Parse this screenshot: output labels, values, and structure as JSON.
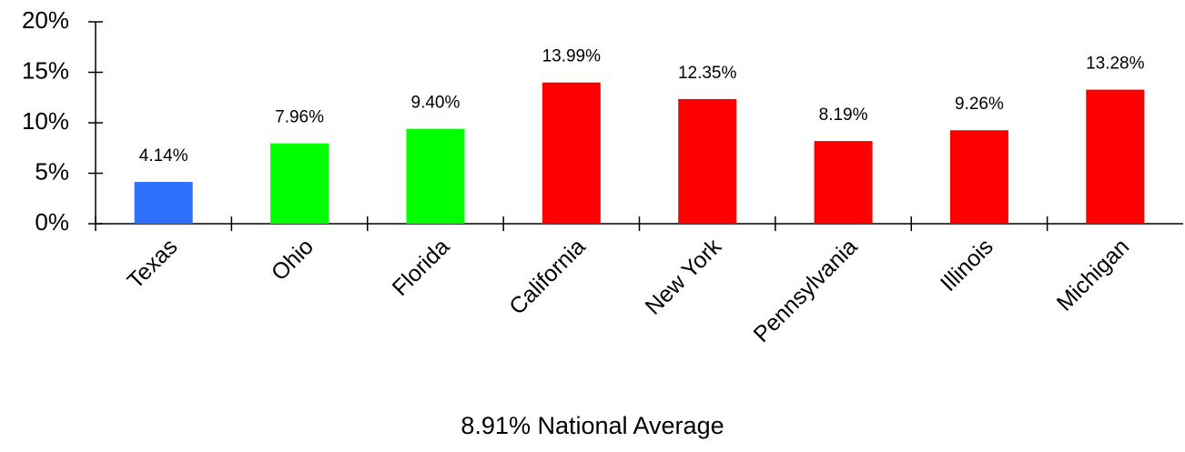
{
  "chart_data": {
    "type": "bar",
    "categories": [
      "Texas",
      "Ohio",
      "Florida",
      "California",
      "New York",
      "Pennsylvania",
      "Illinois",
      "Michigan"
    ],
    "values": [
      4.14,
      7.96,
      9.4,
      13.99,
      12.35,
      8.19,
      9.26,
      13.28
    ],
    "value_labels": [
      "4.14%",
      "7.96%",
      "9.40%",
      "13.99%",
      "12.35%",
      "8.19%",
      "9.26%",
      "13.28%"
    ],
    "colors": [
      "#3070ff",
      "#00ff00",
      "#00ff00",
      "#ff0000",
      "#ff0000",
      "#ff0000",
      "#ff0000",
      "#ff0000"
    ],
    "ylim": [
      0,
      20
    ],
    "yticks": [
      {
        "value": 0,
        "label": "0%"
      },
      {
        "value": 5,
        "label": "5%"
      },
      {
        "value": 10,
        "label": "10%"
      },
      {
        "value": 15,
        "label": "15%"
      },
      {
        "value": 20,
        "label": "20%"
      }
    ],
    "annotation": "8.91% National Average"
  }
}
